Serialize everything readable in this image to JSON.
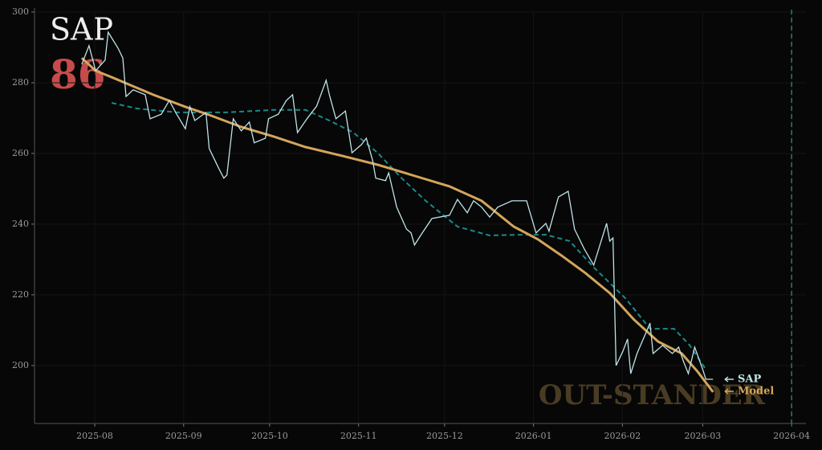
{
  "chart_data": {
    "type": "line",
    "title": "SAP",
    "score": "86",
    "watermark": "OUT-STANDER",
    "xlim": [
      -21,
      248
    ],
    "ylim": [
      183.6,
      300
    ],
    "xticks": [
      {
        "value": 0,
        "label": "2025-08"
      },
      {
        "value": 31,
        "label": "2025-09"
      },
      {
        "value": 61,
        "label": "2025-10"
      },
      {
        "value": 92,
        "label": "2025-11"
      },
      {
        "value": 122,
        "label": "2025-12"
      },
      {
        "value": 153,
        "label": "2026-01"
      },
      {
        "value": 184,
        "label": "2026-02"
      },
      {
        "value": 212,
        "label": "2026-03"
      },
      {
        "value": 243,
        "label": "2026-04"
      }
    ],
    "yticks": [
      200,
      220,
      240,
      260,
      280,
      300
    ],
    "grid": true,
    "vline": 243,
    "series": [
      {
        "name": "SAP",
        "color": "#bfe3e6",
        "dashed": false,
        "x": [
          -4.5,
          -2.0,
          0.3,
          3.6,
          4.7,
          8.1,
          9.8,
          10.9,
          13.4,
          17.6,
          19.3,
          23.2,
          26.0,
          28.2,
          31.6,
          33.2,
          34.9,
          38.8,
          39.9,
          43.3,
          45.0,
          46.1,
          48.3,
          51.1,
          53.9,
          55.6,
          59.5,
          60.6,
          64.0,
          66.8,
          69.0,
          70.7,
          74.0,
          77.4,
          80.7,
          81.8,
          84.1,
          87.4,
          89.7,
          93.0,
          94.7,
          96.9,
          98.0,
          101.4,
          102.5,
          105.3,
          108.7,
          110.3,
          111.5,
          114.2,
          117.6,
          123.7,
          126.5,
          129.9,
          132.1,
          134.9,
          137.7,
          140.5,
          145.5,
          150.6,
          153.9,
          157.3,
          158.4,
          161.7,
          165.1,
          167.3,
          170.7,
          174.0,
          178.5,
          179.6,
          180.7,
          181.8,
          184.1,
          185.8,
          186.9,
          189.1,
          192.5,
          193.6,
          194.7,
          198.0,
          201.4,
          203.6,
          205.3,
          207.0,
          209.2,
          212.0,
          213.1,
          215.6
        ],
        "values": [
          285.2,
          290.5,
          283.4,
          286.4,
          294.3,
          289.8,
          287.0,
          276.1,
          278.0,
          276.6,
          269.8,
          271.1,
          275.0,
          271.6,
          267.0,
          273.2,
          269.3,
          271.6,
          261.4,
          255.7,
          253.0,
          253.9,
          269.8,
          266.4,
          268.9,
          263.0,
          264.3,
          269.8,
          271.1,
          275.0,
          276.6,
          265.9,
          269.8,
          273.4,
          280.7,
          276.6,
          269.8,
          272.0,
          260.2,
          262.5,
          264.3,
          258.0,
          253.0,
          252.3,
          254.5,
          244.8,
          238.6,
          237.5,
          234.1,
          237.5,
          241.6,
          242.5,
          247.0,
          243.2,
          246.6,
          244.8,
          242.0,
          244.8,
          246.6,
          246.6,
          237.5,
          240.2,
          238.0,
          247.7,
          249.3,
          238.6,
          233.0,
          228.4,
          240.2,
          235.2,
          236.1,
          200.0,
          203.9,
          207.5,
          197.7,
          203.4,
          209.8,
          212.0,
          203.4,
          205.7,
          203.4,
          205.2,
          201.1,
          197.7,
          205.2,
          198.9,
          196.1,
          196.1
        ]
      },
      {
        "name": "Model",
        "color": "#d4a55c",
        "dashed": false,
        "x": [
          -4.5,
          0.3,
          6.4,
          12.0,
          20.4,
          31.6,
          39.9,
          51.1,
          62.3,
          73.5,
          87.4,
          98.6,
          112.6,
          123.7,
          134.9,
          146.1,
          154.5,
          162.8,
          171.2,
          179.6,
          188.0,
          196.4,
          204.7,
          210.3,
          215.6
        ],
        "values": [
          287.0,
          283.4,
          281.4,
          279.5,
          276.6,
          273.2,
          270.9,
          267.5,
          264.8,
          261.8,
          259.1,
          256.8,
          253.4,
          250.7,
          246.6,
          239.3,
          235.7,
          231.1,
          226.1,
          220.5,
          213.0,
          206.8,
          203.4,
          198.2,
          192.5
        ]
      },
      {
        "color": "#1a8a8a",
        "dashed": true,
        "x": [
          5.9,
          14.8,
          28.8,
          45.5,
          62.3,
          73.5,
          81.8,
          90.2,
          98.6,
          107.0,
          115.4,
          126.5,
          137.7,
          148.9,
          157.3,
          165.6,
          174.0,
          185.2,
          193.6,
          202.0,
          207.5,
          213.1
        ],
        "values": [
          274.3,
          272.7,
          271.6,
          271.6,
          272.3,
          272.3,
          269.3,
          265.9,
          260.2,
          253.0,
          246.6,
          239.3,
          236.8,
          237.0,
          237.0,
          235.2,
          227.8,
          218.9,
          210.4,
          210.4,
          205.7,
          198.9
        ]
      }
    ]
  }
}
